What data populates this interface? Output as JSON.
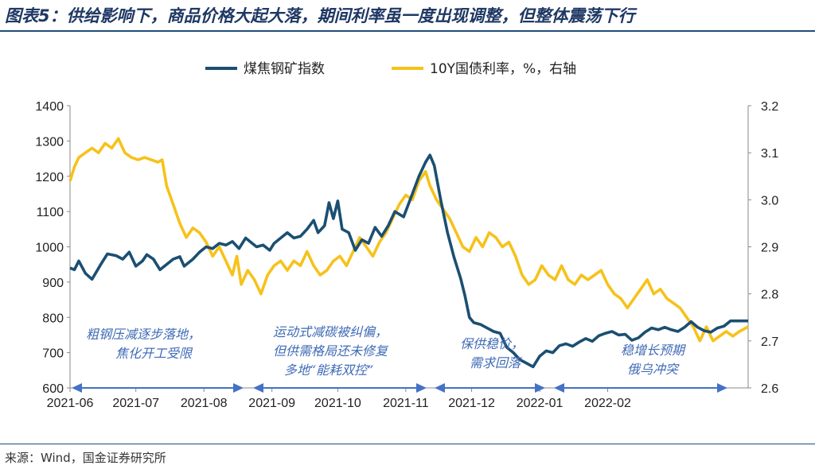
{
  "title": "图表5：供给影响下，商品价格大起大落，期间利率虽一度出现调整，但整体震荡下行",
  "source": "来源：Wind，国金证券研究所",
  "colors": {
    "coal": "#1b4f72",
    "bond": "#f6c21b",
    "arrow": "#4472c4",
    "annotation": "#3f6bb5",
    "title": "#1f3864"
  },
  "chart_data": {
    "type": "line",
    "legend_position": "top-center",
    "grid": false,
    "x_ticks": [
      "2021-06",
      "2021-07",
      "2021-08",
      "2021-09",
      "2021-10",
      "2021-11",
      "2021-12",
      "2022-01",
      "2022-02"
    ],
    "y_left": {
      "ticks": [
        "600",
        "700",
        "800",
        "900",
        "1000",
        "1100",
        "1200",
        "1300",
        "1400"
      ],
      "range": [
        600,
        1400
      ]
    },
    "y_right": {
      "ticks": [
        "2.6",
        "2.7",
        "2.8",
        "2.9",
        "3.0",
        "3.1",
        "3.2"
      ],
      "range": [
        2.6,
        3.2
      ]
    },
    "series": [
      {
        "name": "煤焦钢矿指数",
        "axis": "left",
        "color": "#1b4f72",
        "points": [
          [
            "2021-06-01",
            940
          ],
          [
            "2021-06-03",
            935
          ],
          [
            "2021-06-05",
            960
          ],
          [
            "2021-06-08",
            925
          ],
          [
            "2021-06-11",
            908
          ],
          [
            "2021-06-15",
            950
          ],
          [
            "2021-06-18",
            980
          ],
          [
            "2021-06-22",
            975
          ],
          [
            "2021-06-25",
            965
          ],
          [
            "2021-06-28",
            985
          ],
          [
            "2021-07-01",
            945
          ],
          [
            "2021-07-04",
            960
          ],
          [
            "2021-07-06",
            978
          ],
          [
            "2021-07-09",
            965
          ],
          [
            "2021-07-12",
            935
          ],
          [
            "2021-07-15",
            950
          ],
          [
            "2021-07-18",
            965
          ],
          [
            "2021-07-21",
            972
          ],
          [
            "2021-07-23",
            945
          ],
          [
            "2021-07-27",
            965
          ],
          [
            "2021-07-30",
            985
          ],
          [
            "2021-08-02",
            1000
          ],
          [
            "2021-08-05",
            995
          ],
          [
            "2021-08-08",
            1010
          ],
          [
            "2021-08-11",
            1005
          ],
          [
            "2021-08-14",
            1015
          ],
          [
            "2021-08-17",
            995
          ],
          [
            "2021-08-20",
            1025
          ],
          [
            "2021-08-23",
            1010
          ],
          [
            "2021-08-25",
            1000
          ],
          [
            "2021-08-28",
            1005
          ],
          [
            "2021-08-31",
            990
          ],
          [
            "2021-09-02",
            1010
          ],
          [
            "2021-09-05",
            1025
          ],
          [
            "2021-09-08",
            1040
          ],
          [
            "2021-09-11",
            1025
          ],
          [
            "2021-09-14",
            1030
          ],
          [
            "2021-09-17",
            1050
          ],
          [
            "2021-09-20",
            1075
          ],
          [
            "2021-09-22",
            1040
          ],
          [
            "2021-09-25",
            1060
          ],
          [
            "2021-09-27",
            1125
          ],
          [
            "2021-09-29",
            1080
          ],
          [
            "2021-10-01",
            1130
          ],
          [
            "2021-10-03",
            1050
          ],
          [
            "2021-10-06",
            1040
          ],
          [
            "2021-10-09",
            990
          ],
          [
            "2021-10-12",
            1020
          ],
          [
            "2021-10-15",
            1010
          ],
          [
            "2021-10-18",
            1055
          ],
          [
            "2021-10-21",
            1030
          ],
          [
            "2021-10-24",
            1060
          ],
          [
            "2021-10-27",
            1100
          ],
          [
            "2021-10-31",
            1085
          ],
          [
            "2021-11-04",
            1150
          ],
          [
            "2021-11-07",
            1200
          ],
          [
            "2021-11-10",
            1240
          ],
          [
            "2021-11-12",
            1260
          ],
          [
            "2021-11-14",
            1230
          ],
          [
            "2021-11-17",
            1130
          ],
          [
            "2021-11-20",
            1040
          ],
          [
            "2021-11-23",
            970
          ],
          [
            "2021-11-26",
            910
          ],
          [
            "2021-11-28",
            860
          ],
          [
            "2021-11-30",
            800
          ],
          [
            "2021-12-02",
            785
          ],
          [
            "2021-12-05",
            780
          ],
          [
            "2021-12-08",
            770
          ],
          [
            "2021-12-11",
            760
          ],
          [
            "2021-12-14",
            755
          ],
          [
            "2021-12-17",
            715
          ],
          [
            "2021-12-20",
            700
          ],
          [
            "2021-12-23",
            680
          ],
          [
            "2021-12-26",
            670
          ],
          [
            "2021-12-29",
            660
          ],
          [
            "2022-01-01",
            690
          ],
          [
            "2022-01-04",
            705
          ],
          [
            "2022-01-07",
            700
          ],
          [
            "2022-01-10",
            720
          ],
          [
            "2022-01-13",
            725
          ],
          [
            "2022-01-16",
            718
          ],
          [
            "2022-01-19",
            730
          ],
          [
            "2022-01-22",
            740
          ],
          [
            "2022-01-25",
            732
          ],
          [
            "2022-01-28",
            748
          ],
          [
            "2022-01-31",
            755
          ],
          [
            "2022-02-03",
            760
          ],
          [
            "2022-02-06",
            750
          ],
          [
            "2022-02-09",
            752
          ],
          [
            "2022-02-12",
            735
          ],
          [
            "2022-02-15",
            742
          ],
          [
            "2022-02-18",
            758
          ],
          [
            "2022-02-21",
            770
          ],
          [
            "2022-02-24",
            765
          ],
          [
            "2022-02-27",
            772
          ],
          [
            "2022-03-02",
            765
          ],
          [
            "2022-03-05",
            760
          ],
          [
            "2022-03-08",
            772
          ],
          [
            "2022-03-11",
            788
          ],
          [
            "2022-03-14",
            772
          ],
          [
            "2022-03-17",
            762
          ],
          [
            "2022-03-20",
            758
          ],
          [
            "2022-03-23",
            770
          ],
          [
            "2022-03-26",
            775
          ],
          [
            "2022-03-29",
            790
          ],
          [
            "2022-04-01",
            790
          ],
          [
            "2022-04-04",
            790
          ],
          [
            "2022-04-06",
            790
          ]
        ]
      },
      {
        "name": "10Y国债利率，%，右轴",
        "axis": "right",
        "color": "#f6c21b",
        "points": [
          [
            "2021-06-01",
            3.04
          ],
          [
            "2021-06-03",
            3.07
          ],
          [
            "2021-06-05",
            3.09
          ],
          [
            "2021-06-08",
            3.1
          ],
          [
            "2021-06-11",
            3.11
          ],
          [
            "2021-06-14",
            3.1
          ],
          [
            "2021-06-17",
            3.12
          ],
          [
            "2021-06-20",
            3.11
          ],
          [
            "2021-06-23",
            3.13
          ],
          [
            "2021-06-26",
            3.1
          ],
          [
            "2021-06-29",
            3.09
          ],
          [
            "2021-07-02",
            3.085
          ],
          [
            "2021-07-05",
            3.09
          ],
          [
            "2021-07-08",
            3.085
          ],
          [
            "2021-07-11",
            3.08
          ],
          [
            "2021-07-13",
            3.085
          ],
          [
            "2021-07-15",
            3.03
          ],
          [
            "2021-07-18",
            2.99
          ],
          [
            "2021-07-21",
            2.95
          ],
          [
            "2021-07-24",
            2.92
          ],
          [
            "2021-07-27",
            2.94
          ],
          [
            "2021-07-30",
            2.93
          ],
          [
            "2021-08-02",
            2.91
          ],
          [
            "2021-08-05",
            2.88
          ],
          [
            "2021-08-08",
            2.9
          ],
          [
            "2021-08-11",
            2.87
          ],
          [
            "2021-08-14",
            2.84
          ],
          [
            "2021-08-16",
            2.88
          ],
          [
            "2021-08-18",
            2.82
          ],
          [
            "2021-08-21",
            2.85
          ],
          [
            "2021-08-24",
            2.83
          ],
          [
            "2021-08-27",
            2.8
          ],
          [
            "2021-08-30",
            2.84
          ],
          [
            "2021-09-02",
            2.86
          ],
          [
            "2021-09-05",
            2.87
          ],
          [
            "2021-09-08",
            2.85
          ],
          [
            "2021-09-11",
            2.87
          ],
          [
            "2021-09-14",
            2.86
          ],
          [
            "2021-09-17",
            2.89
          ],
          [
            "2021-09-20",
            2.86
          ],
          [
            "2021-09-23",
            2.84
          ],
          [
            "2021-09-26",
            2.85
          ],
          [
            "2021-09-29",
            2.87
          ],
          [
            "2021-10-02",
            2.88
          ],
          [
            "2021-10-05",
            2.86
          ],
          [
            "2021-10-08",
            2.89
          ],
          [
            "2021-10-11",
            2.92
          ],
          [
            "2021-10-14",
            2.9
          ],
          [
            "2021-10-17",
            2.88
          ],
          [
            "2021-10-20",
            2.91
          ],
          [
            "2021-10-23",
            2.93
          ],
          [
            "2021-10-26",
            2.96
          ],
          [
            "2021-10-29",
            2.99
          ],
          [
            "2021-11-01",
            3.01
          ],
          [
            "2021-11-04",
            3.0
          ],
          [
            "2021-11-07",
            3.04
          ],
          [
            "2021-11-10",
            3.06
          ],
          [
            "2021-11-12",
            3.03
          ],
          [
            "2021-11-15",
            3.0
          ],
          [
            "2021-11-18",
            2.98
          ],
          [
            "2021-11-21",
            2.96
          ],
          [
            "2021-11-24",
            2.93
          ],
          [
            "2021-11-27",
            2.9
          ],
          [
            "2021-11-30",
            2.89
          ],
          [
            "2021-12-03",
            2.92
          ],
          [
            "2021-12-06",
            2.9
          ],
          [
            "2021-12-09",
            2.93
          ],
          [
            "2021-12-12",
            2.92
          ],
          [
            "2021-12-15",
            2.9
          ],
          [
            "2021-12-18",
            2.91
          ],
          [
            "2021-12-21",
            2.88
          ],
          [
            "2021-12-24",
            2.84
          ],
          [
            "2021-12-27",
            2.82
          ],
          [
            "2021-12-30",
            2.83
          ],
          [
            "2022-01-02",
            2.86
          ],
          [
            "2022-01-05",
            2.84
          ],
          [
            "2022-01-08",
            2.83
          ],
          [
            "2022-01-11",
            2.86
          ],
          [
            "2022-01-14",
            2.83
          ],
          [
            "2022-01-17",
            2.82
          ],
          [
            "2022-01-20",
            2.84
          ],
          [
            "2022-01-23",
            2.83
          ],
          [
            "2022-01-26",
            2.84
          ],
          [
            "2022-01-29",
            2.85
          ],
          [
            "2022-02-01",
            2.82
          ],
          [
            "2022-02-04",
            2.8
          ],
          [
            "2022-02-07",
            2.79
          ],
          [
            "2022-02-10",
            2.77
          ],
          [
            "2022-02-13",
            2.79
          ],
          [
            "2022-02-16",
            2.81
          ],
          [
            "2022-02-19",
            2.83
          ],
          [
            "2022-02-22",
            2.8
          ],
          [
            "2022-02-25",
            2.81
          ],
          [
            "2022-02-28",
            2.79
          ],
          [
            "2022-03-03",
            2.78
          ],
          [
            "2022-03-06",
            2.77
          ],
          [
            "2022-03-09",
            2.75
          ],
          [
            "2022-03-12",
            2.73
          ],
          [
            "2022-03-15",
            2.7
          ],
          [
            "2022-03-18",
            2.73
          ],
          [
            "2022-03-21",
            2.7
          ],
          [
            "2022-03-24",
            2.71
          ],
          [
            "2022-03-27",
            2.72
          ],
          [
            "2022-03-30",
            2.71
          ],
          [
            "2022-04-02",
            2.72
          ],
          [
            "2022-04-06",
            2.73
          ]
        ]
      }
    ],
    "annotations": [
      {
        "lines": [
          "粗钢压减逐步落地，",
          "焦化开工受限"
        ]
      },
      {
        "lines": [
          "运动式减碳被纠偏，",
          "但供需格局还未修复",
          "多地“能耗双控”"
        ]
      },
      {
        "lines": [
          "保供稳价，",
          "需求回落"
        ]
      },
      {
        "lines": [
          "稳增长预期",
          "俄乌冲突"
        ]
      }
    ]
  }
}
